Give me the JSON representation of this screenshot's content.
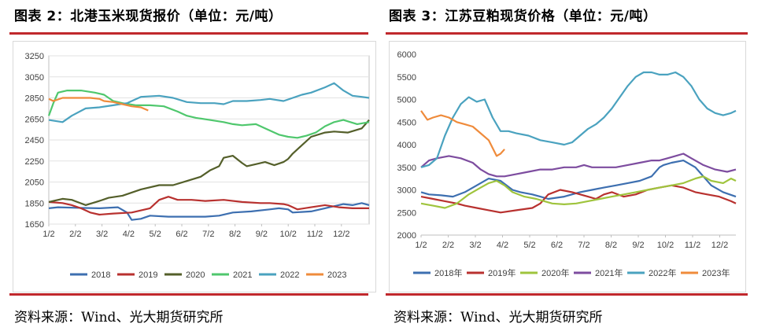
{
  "left": {
    "title": "图表 2：北港玉米现货报价（单位：元/吨）",
    "source": "资料来源：Wind、光大期货研究所",
    "chart_data": {
      "type": "line",
      "title": "北港玉米现货报价",
      "unit": "元/吨",
      "ylim": [
        1650,
        3250
      ],
      "yticks": [
        1650,
        1850,
        2050,
        2250,
        2450,
        2650,
        2850,
        3050,
        3250
      ],
      "xlabels": [
        "1/2",
        "2/2",
        "3/2",
        "4/2",
        "5/2",
        "6/2",
        "7/2",
        "8/2",
        "9/2",
        "10/2",
        "11/2",
        "12/2"
      ],
      "grid": "horizontal",
      "legend_position": "bottom",
      "series": [
        {
          "name": "2018",
          "color": "#3d6fb0",
          "x": [
            0,
            10,
            30,
            55,
            75,
            85,
            90,
            100,
            110,
            130,
            150,
            170,
            185,
            200,
            220,
            240,
            250,
            260,
            265,
            285,
            300,
            305,
            320,
            330,
            340,
            348
          ],
          "y": [
            1800,
            1810,
            1805,
            1800,
            1810,
            1760,
            1690,
            1700,
            1730,
            1720,
            1720,
            1720,
            1730,
            1760,
            1770,
            1790,
            1800,
            1790,
            1760,
            1770,
            1800,
            1810,
            1840,
            1830,
            1850,
            1830
          ]
        },
        {
          "name": "2019",
          "color": "#b8312f",
          "x": [
            0,
            15,
            25,
            35,
            45,
            55,
            70,
            90,
            110,
            120,
            130,
            140,
            155,
            170,
            190,
            210,
            230,
            240,
            255,
            260,
            270,
            285,
            300,
            315,
            330,
            348
          ],
          "y": [
            1860,
            1850,
            1830,
            1800,
            1760,
            1740,
            1750,
            1760,
            1800,
            1880,
            1910,
            1880,
            1880,
            1870,
            1880,
            1860,
            1850,
            1850,
            1840,
            1830,
            1790,
            1810,
            1830,
            1810,
            1800,
            1800
          ]
        },
        {
          "name": "2020",
          "color": "#545f2a",
          "x": [
            0,
            15,
            25,
            40,
            55,
            65,
            80,
            100,
            120,
            135,
            150,
            165,
            175,
            185,
            190,
            200,
            210,
            215,
            225,
            235,
            245,
            255,
            260,
            265,
            275,
            285,
            300,
            310,
            325,
            340,
            348
          ],
          "y": [
            1860,
            1890,
            1880,
            1830,
            1870,
            1900,
            1920,
            1980,
            2020,
            2020,
            2060,
            2100,
            2160,
            2200,
            2280,
            2300,
            2230,
            2200,
            2220,
            2240,
            2210,
            2240,
            2270,
            2320,
            2400,
            2480,
            2520,
            2530,
            2520,
            2560,
            2640
          ]
        },
        {
          "name": "2021",
          "color": "#4fc76d",
          "x": [
            0,
            5,
            10,
            20,
            35,
            50,
            60,
            70,
            80,
            95,
            110,
            125,
            140,
            150,
            160,
            175,
            190,
            200,
            210,
            225,
            235,
            250,
            260,
            270,
            280,
            290,
            300,
            310,
            320,
            335,
            348
          ],
          "y": [
            2680,
            2800,
            2900,
            2920,
            2920,
            2900,
            2880,
            2820,
            2800,
            2780,
            2780,
            2770,
            2720,
            2680,
            2660,
            2640,
            2620,
            2600,
            2590,
            2600,
            2560,
            2500,
            2480,
            2470,
            2490,
            2520,
            2580,
            2620,
            2640,
            2600,
            2620
          ]
        },
        {
          "name": "2022",
          "color": "#4aa2bf",
          "x": [
            0,
            15,
            25,
            40,
            55,
            70,
            85,
            100,
            120,
            135,
            150,
            165,
            180,
            190,
            200,
            215,
            230,
            240,
            255,
            265,
            275,
            285,
            300,
            310,
            320,
            330,
            340,
            348
          ],
          "y": [
            2640,
            2620,
            2680,
            2750,
            2760,
            2780,
            2800,
            2860,
            2870,
            2850,
            2810,
            2800,
            2800,
            2790,
            2820,
            2820,
            2830,
            2840,
            2820,
            2850,
            2880,
            2900,
            2950,
            2990,
            2920,
            2870,
            2860,
            2850
          ]
        },
        {
          "name": "2023",
          "color": "#ef8b3b",
          "x": [
            0,
            5,
            15,
            30,
            45,
            55,
            60,
            70,
            80,
            90,
            100,
            108
          ],
          "y": [
            2840,
            2820,
            2850,
            2850,
            2850,
            2840,
            2820,
            2810,
            2790,
            2770,
            2760,
            2730
          ]
        }
      ]
    }
  },
  "right": {
    "title": "图表 3：江苏豆粕现货价格（单位：元/吨）",
    "source": "资料来源：Wind、光大期货研究所",
    "chart_data": {
      "type": "line",
      "title": "江苏豆粕现货价格",
      "unit": "元/吨",
      "ylim": [
        2000,
        6000
      ],
      "yticks": [
        2000,
        2500,
        3000,
        3500,
        4000,
        4500,
        5000,
        5500,
        6000
      ],
      "xlabels": [
        "1/2",
        "2/2",
        "3/2",
        "4/2",
        "5/2",
        "6/2",
        "7/2",
        "8/2",
        "9/2",
        "10/2",
        "11/2",
        "12/2"
      ],
      "grid": "none",
      "legend_position": "bottom",
      "series": [
        {
          "name": "2018年",
          "color": "#3d6fb0",
          "x": [
            0,
            10,
            25,
            40,
            55,
            70,
            85,
            100,
            115,
            125,
            140,
            150,
            160,
            180,
            200,
            215,
            230,
            245,
            260,
            275,
            290,
            300,
            305,
            315,
            330,
            345,
            355,
            365,
            380,
            396
          ],
          "y": [
            2950,
            2900,
            2880,
            2850,
            2950,
            3100,
            3250,
            3200,
            3000,
            2950,
            2900,
            2850,
            2800,
            2850,
            2950,
            3000,
            3050,
            3100,
            3150,
            3200,
            3300,
            3500,
            3550,
            3600,
            3650,
            3500,
            3300,
            3100,
            2950,
            2850
          ]
        },
        {
          "name": "2019年",
          "color": "#b8312f",
          "x": [
            0,
            15,
            30,
            45,
            55,
            70,
            85,
            100,
            120,
            140,
            150,
            160,
            175,
            190,
            210,
            220,
            230,
            240,
            255,
            270,
            285,
            300,
            315,
            330,
            345,
            360,
            375,
            390,
            396
          ],
          "y": [
            2850,
            2800,
            2750,
            2700,
            2650,
            2600,
            2550,
            2500,
            2550,
            2600,
            2700,
            2900,
            3000,
            2950,
            2850,
            2800,
            2900,
            2950,
            2850,
            2900,
            3000,
            3050,
            3100,
            3050,
            2950,
            2900,
            2850,
            2750,
            2700
          ]
        },
        {
          "name": "2020年",
          "color": "#9fc43d",
          "x": [
            0,
            15,
            30,
            45,
            60,
            75,
            85,
            95,
            105,
            115,
            130,
            145,
            155,
            165,
            180,
            195,
            210,
            225,
            240,
            255,
            270,
            285,
            300,
            315,
            330,
            345,
            355,
            365,
            380,
            390,
            396
          ],
          "y": [
            2700,
            2650,
            2600,
            2700,
            2900,
            3050,
            3150,
            3200,
            3100,
            2950,
            2850,
            2800,
            2750,
            2700,
            2680,
            2700,
            2750,
            2800,
            2850,
            2900,
            2950,
            3000,
            3050,
            3100,
            3150,
            3250,
            3300,
            3200,
            3150,
            3250,
            3200
          ]
        },
        {
          "name": "2021年",
          "color": "#7d4c9f",
          "x": [
            0,
            10,
            20,
            35,
            50,
            65,
            75,
            85,
            95,
            105,
            120,
            135,
            150,
            165,
            180,
            195,
            205,
            215,
            230,
            245,
            260,
            275,
            290,
            300,
            310,
            320,
            330,
            340,
            355,
            370,
            385,
            396
          ],
          "y": [
            3500,
            3650,
            3700,
            3750,
            3700,
            3600,
            3450,
            3350,
            3300,
            3300,
            3350,
            3400,
            3450,
            3450,
            3500,
            3500,
            3550,
            3500,
            3500,
            3500,
            3550,
            3600,
            3650,
            3650,
            3700,
            3750,
            3800,
            3700,
            3550,
            3450,
            3400,
            3450
          ]
        },
        {
          "name": "2022年",
          "color": "#4aa2bf",
          "x": [
            0,
            10,
            20,
            30,
            40,
            50,
            60,
            70,
            80,
            90,
            100,
            110,
            120,
            135,
            150,
            165,
            180,
            190,
            200,
            210,
            220,
            230,
            240,
            250,
            260,
            270,
            280,
            290,
            300,
            310,
            320,
            330,
            340,
            350,
            360,
            370,
            380,
            390,
            396
          ],
          "y": [
            3500,
            3550,
            3700,
            4200,
            4600,
            4900,
            5050,
            4950,
            5000,
            4600,
            4300,
            4300,
            4250,
            4200,
            4100,
            4050,
            4000,
            4050,
            4200,
            4350,
            4450,
            4600,
            4800,
            5050,
            5300,
            5500,
            5600,
            5600,
            5550,
            5550,
            5600,
            5500,
            5300,
            5000,
            4800,
            4700,
            4650,
            4700,
            4750
          ]
        },
        {
          "name": "2023年",
          "color": "#ef8b3b",
          "x": [
            0,
            8,
            15,
            25,
            35,
            45,
            55,
            65,
            75,
            85,
            95,
            100,
            105
          ],
          "y": [
            4750,
            4550,
            4600,
            4650,
            4600,
            4500,
            4450,
            4400,
            4250,
            4100,
            3750,
            3800,
            3900
          ]
        }
      ]
    }
  }
}
